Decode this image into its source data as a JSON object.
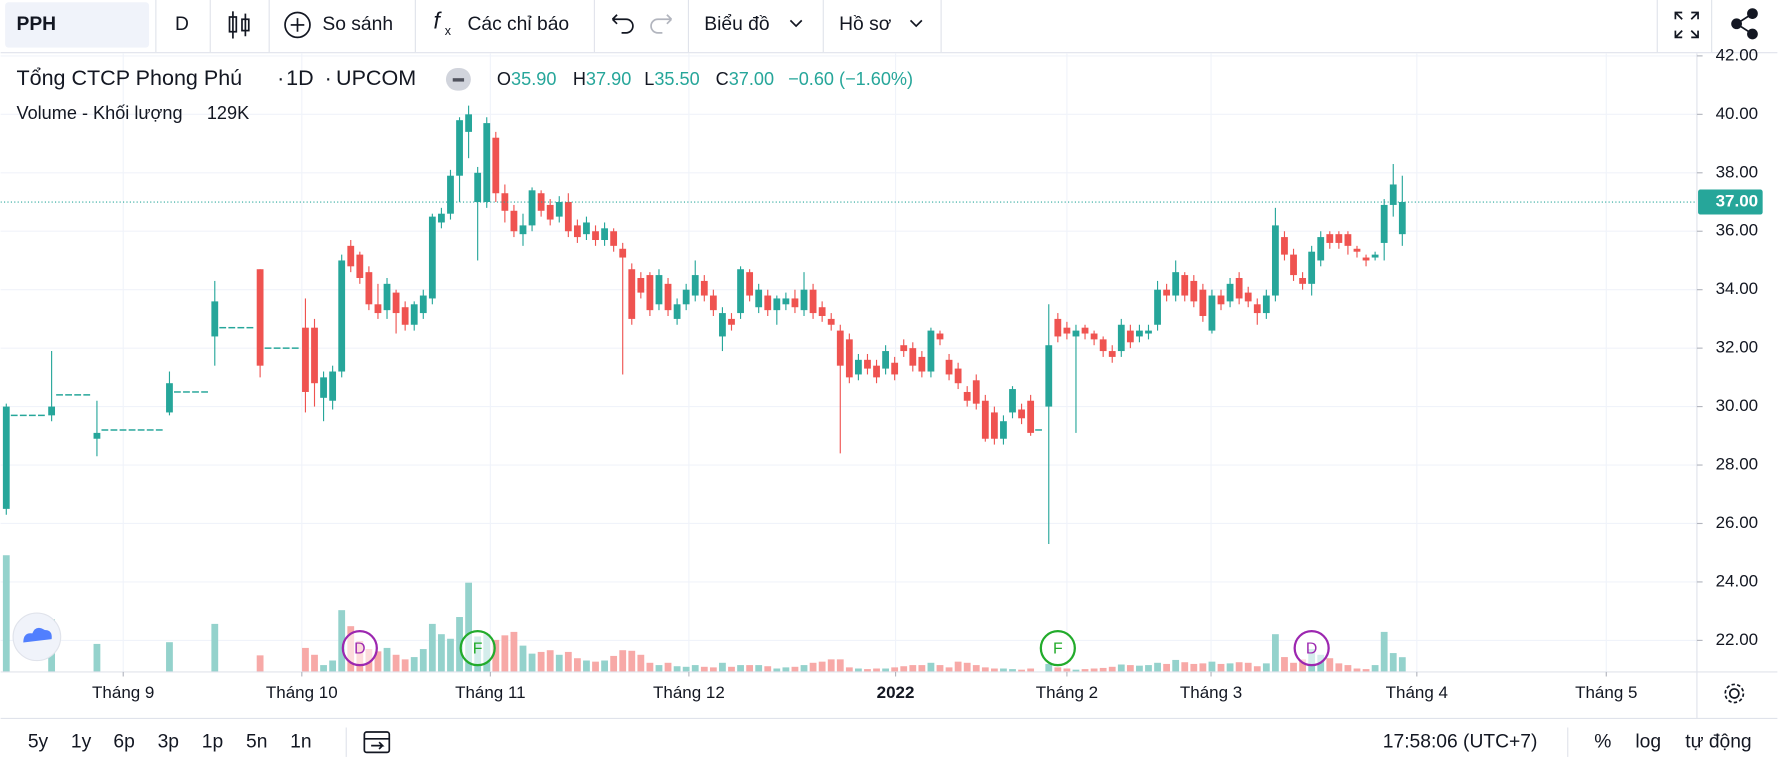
{
  "toolbar": {
    "symbol": "PPH",
    "interval": "D",
    "compare": "So sánh",
    "indicators": "Các chỉ báo",
    "chart": "Biểu đồ",
    "profile": "Hồ sơ"
  },
  "legend": {
    "name": "Tổng CTCP Phong Phú",
    "interval": "1D",
    "exchange": "UPCOM",
    "ohlc": [
      {
        "label": "O",
        "value": "35.90"
      },
      {
        "label": "H",
        "value": "37.90"
      },
      {
        "label": "L",
        "value": "35.50"
      },
      {
        "label": "C",
        "value": "37.00"
      }
    ],
    "change": "−0.60 (−1.60%)",
    "volume_title": "Volume - Khối lượng",
    "volume_value": "129K"
  },
  "chart_data": {
    "type": "candlestick",
    "ohlc": [
      [
        26.5,
        30.1,
        26.3,
        30.0
      ],
      [
        29.7,
        29.7,
        29.7,
        29.7
      ],
      [
        29.7,
        29.7,
        29.7,
        29.7
      ],
      [
        29.7,
        29.7,
        29.7,
        29.7
      ],
      [
        29.7,
        29.7,
        29.7,
        29.7
      ],
      [
        29.7,
        31.9,
        29.5,
        30.0
      ],
      [
        30.4,
        30.4,
        30.4,
        30.4
      ],
      [
        30.4,
        30.4,
        30.4,
        30.4
      ],
      [
        30.4,
        30.4,
        30.4,
        30.4
      ],
      [
        30.4,
        30.4,
        30.4,
        30.4
      ],
      [
        28.9,
        30.2,
        28.3,
        29.1
      ],
      [
        29.2,
        29.2,
        29.2,
        29.2
      ],
      [
        29.2,
        29.2,
        29.2,
        29.2
      ],
      [
        29.2,
        29.2,
        29.2,
        29.2
      ],
      [
        29.2,
        29.2,
        29.2,
        29.2
      ],
      [
        29.2,
        29.2,
        29.2,
        29.2
      ],
      [
        29.2,
        29.2,
        29.2,
        29.2
      ],
      [
        29.2,
        29.2,
        29.2,
        29.2
      ],
      [
        29.8,
        31.2,
        29.7,
        30.8
      ],
      [
        30.5,
        30.5,
        30.5,
        30.5
      ],
      [
        30.5,
        30.5,
        30.5,
        30.5
      ],
      [
        30.5,
        30.5,
        30.5,
        30.5
      ],
      [
        30.5,
        30.5,
        30.5,
        30.5
      ],
      [
        32.4,
        34.3,
        31.4,
        33.6
      ],
      [
        32.7,
        32.7,
        32.7,
        32.7
      ],
      [
        32.7,
        32.7,
        32.7,
        32.7
      ],
      [
        32.7,
        32.7,
        32.7,
        32.7
      ],
      [
        32.7,
        32.7,
        32.7,
        32.7
      ],
      [
        34.7,
        34.7,
        31.0,
        31.4
      ],
      [
        32.0,
        32.0,
        32.0,
        32.0
      ],
      [
        32.0,
        32.0,
        32.0,
        32.0
      ],
      [
        32.0,
        32.0,
        32.0,
        32.0
      ],
      [
        32.0,
        32.0,
        32.0,
        32.0
      ],
      [
        32.7,
        33.7,
        29.8,
        30.5
      ],
      [
        32.7,
        33.0,
        30.0,
        30.8
      ],
      [
        30.3,
        31.2,
        29.5,
        31.0
      ],
      [
        30.2,
        31.4,
        29.9,
        31.2
      ],
      [
        31.2,
        35.2,
        31.0,
        35.0
      ],
      [
        35.5,
        35.7,
        34.6,
        34.8
      ],
      [
        35.2,
        35.3,
        34.2,
        34.4
      ],
      [
        34.6,
        34.8,
        33.3,
        33.5
      ],
      [
        33.5,
        34.2,
        33.0,
        33.2
      ],
      [
        33.3,
        34.4,
        33.0,
        34.2
      ],
      [
        33.9,
        34.0,
        32.5,
        33.2
      ],
      [
        33.4,
        33.6,
        32.6,
        32.8
      ],
      [
        32.8,
        33.6,
        32.6,
        33.5
      ],
      [
        33.2,
        34.0,
        33.0,
        33.8
      ],
      [
        33.7,
        36.6,
        33.5,
        36.5
      ],
      [
        36.3,
        36.8,
        36.1,
        36.6
      ],
      [
        36.6,
        38.1,
        36.4,
        37.9
      ],
      [
        37.9,
        39.9,
        37.0,
        39.8
      ],
      [
        39.4,
        40.3,
        38.5,
        40.0
      ],
      [
        37.0,
        38.2,
        35.0,
        38.0
      ],
      [
        37.0,
        39.9,
        36.8,
        39.7
      ],
      [
        39.2,
        39.4,
        37.0,
        37.3
      ],
      [
        37.3,
        37.6,
        36.3,
        36.7
      ],
      [
        36.7,
        36.9,
        35.8,
        36.0
      ],
      [
        35.9,
        36.6,
        35.5,
        36.2
      ],
      [
        36.2,
        37.5,
        36.0,
        37.4
      ],
      [
        37.3,
        37.4,
        36.5,
        36.7
      ],
      [
        36.9,
        37.1,
        36.2,
        36.4
      ],
      [
        36.5,
        37.2,
        36.3,
        37.0
      ],
      [
        37.0,
        37.3,
        35.8,
        36.0
      ],
      [
        36.2,
        36.4,
        35.6,
        35.8
      ],
      [
        35.9,
        36.5,
        35.7,
        36.3
      ],
      [
        36.0,
        36.2,
        35.5,
        35.7
      ],
      [
        35.7,
        36.3,
        35.5,
        36.1
      ],
      [
        36.0,
        36.1,
        35.3,
        35.5
      ],
      [
        35.4,
        35.6,
        31.1,
        35.1
      ],
      [
        34.7,
        34.9,
        32.8,
        33.0
      ],
      [
        34.4,
        34.6,
        33.7,
        33.9
      ],
      [
        34.5,
        34.6,
        33.1,
        33.3
      ],
      [
        33.5,
        34.7,
        33.3,
        34.5
      ],
      [
        34.2,
        34.4,
        33.1,
        33.3
      ],
      [
        33.0,
        33.7,
        32.8,
        33.5
      ],
      [
        33.5,
        34.2,
        33.3,
        34.0
      ],
      [
        33.8,
        35.0,
        33.6,
        34.5
      ],
      [
        34.3,
        34.5,
        33.6,
        33.8
      ],
      [
        33.8,
        34.0,
        33.1,
        33.3
      ],
      [
        32.4,
        33.4,
        31.9,
        33.2
      ],
      [
        33.0,
        33.2,
        32.6,
        32.8
      ],
      [
        33.2,
        34.8,
        33.0,
        34.7
      ],
      [
        34.6,
        34.7,
        33.6,
        33.8
      ],
      [
        33.4,
        34.2,
        33.2,
        34.0
      ],
      [
        33.8,
        34.0,
        33.1,
        33.3
      ],
      [
        33.3,
        33.8,
        32.8,
        33.7
      ],
      [
        33.5,
        33.9,
        33.3,
        33.7
      ],
      [
        33.7,
        34.0,
        33.2,
        33.4
      ],
      [
        33.3,
        34.6,
        33.1,
        34.0
      ],
      [
        34.0,
        34.2,
        33.0,
        33.2
      ],
      [
        33.4,
        33.6,
        32.9,
        33.1
      ],
      [
        33.0,
        33.2,
        32.6,
        32.8
      ],
      [
        32.6,
        32.8,
        28.4,
        31.4
      ],
      [
        32.3,
        32.5,
        30.8,
        31.0
      ],
      [
        31.1,
        31.8,
        30.9,
        31.6
      ],
      [
        31.6,
        31.8,
        31.1,
        31.3
      ],
      [
        31.4,
        31.6,
        30.8,
        31.0
      ],
      [
        31.3,
        32.1,
        31.1,
        31.9
      ],
      [
        31.5,
        31.7,
        30.9,
        31.1
      ],
      [
        32.1,
        32.3,
        31.7,
        31.9
      ],
      [
        32.0,
        32.2,
        31.2,
        31.4
      ],
      [
        31.7,
        31.9,
        31.0,
        31.2
      ],
      [
        31.2,
        32.7,
        31.0,
        32.6
      ],
      [
        32.5,
        32.6,
        32.1,
        32.3
      ],
      [
        31.6,
        31.8,
        30.9,
        31.1
      ],
      [
        31.3,
        31.5,
        30.6,
        30.8
      ],
      [
        30.5,
        30.7,
        30.0,
        30.2
      ],
      [
        30.9,
        31.1,
        29.9,
        30.1
      ],
      [
        30.2,
        30.4,
        28.8,
        28.9
      ],
      [
        29.8,
        30.0,
        28.7,
        28.9
      ],
      [
        28.9,
        29.7,
        28.7,
        29.5
      ],
      [
        29.8,
        30.7,
        29.6,
        30.6
      ],
      [
        29.9,
        30.1,
        29.4,
        29.6
      ],
      [
        30.2,
        30.4,
        29.0,
        29.1
      ],
      [
        29.2,
        29.2,
        29.2,
        29.2
      ],
      [
        30.0,
        33.5,
        25.3,
        32.1
      ],
      [
        33.0,
        33.2,
        32.2,
        32.4
      ],
      [
        32.7,
        32.9,
        32.3,
        32.5
      ],
      [
        32.4,
        32.8,
        29.1,
        32.6
      ],
      [
        32.7,
        32.8,
        32.3,
        32.5
      ],
      [
        32.5,
        32.6,
        32.1,
        32.3
      ],
      [
        32.3,
        32.4,
        31.7,
        31.9
      ],
      [
        31.9,
        32.1,
        31.5,
        31.7
      ],
      [
        31.9,
        33.0,
        31.7,
        32.8
      ],
      [
        32.6,
        32.8,
        32.0,
        32.2
      ],
      [
        32.4,
        32.8,
        32.2,
        32.6
      ],
      [
        32.5,
        32.8,
        32.3,
        32.6
      ],
      [
        32.8,
        34.3,
        32.6,
        34.0
      ],
      [
        34.0,
        34.2,
        33.6,
        33.8
      ],
      [
        33.8,
        35.0,
        33.6,
        34.6
      ],
      [
        34.5,
        34.6,
        33.6,
        33.8
      ],
      [
        34.3,
        34.5,
        33.4,
        33.6
      ],
      [
        34.0,
        34.2,
        32.9,
        33.1
      ],
      [
        32.6,
        34.0,
        32.5,
        33.8
      ],
      [
        33.8,
        34.0,
        33.3,
        33.5
      ],
      [
        33.6,
        34.4,
        33.4,
        34.2
      ],
      [
        34.4,
        34.6,
        33.5,
        33.7
      ],
      [
        33.9,
        34.1,
        33.4,
        33.6
      ],
      [
        33.5,
        33.7,
        32.8,
        33.2
      ],
      [
        33.2,
        34.0,
        33.0,
        33.8
      ],
      [
        33.8,
        36.8,
        33.6,
        36.2
      ],
      [
        35.8,
        36.0,
        35.0,
        35.2
      ],
      [
        35.2,
        35.4,
        34.3,
        34.5
      ],
      [
        34.4,
        34.6,
        34.0,
        34.2
      ],
      [
        34.2,
        35.5,
        33.8,
        35.3
      ],
      [
        35.0,
        36.0,
        34.8,
        35.8
      ],
      [
        35.9,
        36.0,
        35.4,
        35.6
      ],
      [
        35.9,
        36.0,
        35.4,
        35.6
      ],
      [
        35.9,
        36.0,
        35.2,
        35.5
      ],
      [
        35.4,
        35.5,
        35.1,
        35.3
      ],
      [
        35.1,
        35.2,
        34.8,
        35.0
      ],
      [
        35.1,
        35.3,
        35.0,
        35.2
      ],
      [
        35.6,
        37.1,
        35.0,
        36.9
      ],
      [
        36.9,
        38.3,
        36.5,
        37.6
      ],
      [
        35.9,
        37.9,
        35.5,
        37.0
      ]
    ],
    "volume": [
      1020,
      0,
      0,
      0,
      0,
      460,
      0,
      0,
      0,
      0,
      245,
      0,
      0,
      0,
      0,
      0,
      0,
      0,
      260,
      0,
      0,
      0,
      0,
      420,
      0,
      0,
      0,
      0,
      145,
      0,
      0,
      0,
      0,
      210,
      150,
      60,
      100,
      540,
      400,
      270,
      200,
      180,
      210,
      150,
      110,
      130,
      200,
      420,
      330,
      290,
      480,
      780,
      310,
      330,
      280,
      320,
      350,
      230,
      160,
      175,
      190,
      150,
      175,
      120,
      100,
      90,
      100,
      140,
      190,
      185,
      150,
      80,
      60,
      80,
      50,
      45,
      60,
      45,
      40,
      80,
      45,
      60,
      60,
      60,
      50,
      30,
      40,
      45,
      60,
      80,
      90,
      110,
      110,
      40,
      30,
      25,
      30,
      30,
      40,
      50,
      60,
      60,
      80,
      60,
      40,
      90,
      80,
      60,
      40,
      30,
      30,
      25,
      20,
      30,
      0,
      70,
      40,
      30,
      20,
      25,
      30,
      35,
      45,
      65,
      60,
      55,
      60,
      80,
      70,
      105,
      85,
      70,
      75,
      90,
      70,
      75,
      85,
      80,
      50,
      75,
      330,
      130,
      80,
      110,
      200,
      150,
      120,
      75,
      60,
      30,
      25,
      60,
      350,
      165,
      129
    ],
    "up_color": "#26a69a",
    "down_color": "#ef5350",
    "up_volume_color": "#94d2cc",
    "down_volume_color": "#f7a9a7",
    "xlim": [
      -0.625,
      186.5
    ],
    "ylim": [
      20.92,
      42.09
    ],
    "xticks": [
      {
        "value": 12.9,
        "label": "Tháng 9"
      },
      {
        "value": 32.6,
        "label": "Tháng 10"
      },
      {
        "value": 53.4,
        "label": "Tháng 11"
      },
      {
        "value": 75.3,
        "label": "Tháng 12"
      },
      {
        "value": 98.1,
        "label": "2022"
      },
      {
        "value": 117,
        "label": "Tháng 2"
      },
      {
        "value": 132.9,
        "label": "Tháng 3"
      },
      {
        "value": 155.6,
        "label": "Tháng 4"
      },
      {
        "value": 176.5,
        "label": "Tháng 5"
      }
    ],
    "yticks": [
      {
        "value": 22,
        "label": "22.00"
      },
      {
        "value": 24,
        "label": "24.00"
      },
      {
        "value": 26,
        "label": "26.00"
      },
      {
        "value": 28,
        "label": "28.00"
      },
      {
        "value": 30,
        "label": "30.00"
      },
      {
        "value": 32,
        "label": "32.00"
      },
      {
        "value": 34,
        "label": "34.00"
      },
      {
        "value": 36,
        "label": "36.00"
      },
      {
        "value": 38,
        "label": "38.00"
      },
      {
        "value": 40,
        "label": "40.00"
      },
      {
        "value": 42,
        "label": "42.00"
      }
    ],
    "grid": true,
    "last_price": {
      "value": 37,
      "label": "37.00"
    },
    "events": [
      {
        "label": "D",
        "bar": 39,
        "color": "#9c27b0"
      },
      {
        "label": "F",
        "bar": 52,
        "color": "#22ab2b"
      },
      {
        "label": "F",
        "bar": 116,
        "color": "#22ab2b"
      },
      {
        "label": "D",
        "bar": 144,
        "color": "#9c27b0"
      }
    ]
  },
  "bottom": {
    "ranges": [
      "5y",
      "1y",
      "6p",
      "3p",
      "1p",
      "5n",
      "1n"
    ],
    "time": "17:58:06 (UTC+7)",
    "percent": "%",
    "log": "log",
    "auto": "tự động"
  }
}
